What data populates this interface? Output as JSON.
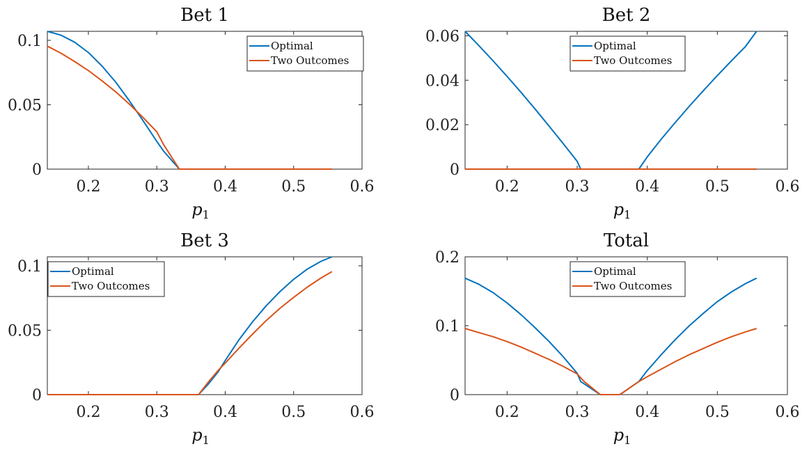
{
  "chart_data": [
    {
      "type": "line",
      "title": "Bet 1",
      "xlabel": "p",
      "xlabel_sub": "1",
      "xlim": [
        0.14,
        0.6
      ],
      "ylim": [
        0,
        0.107
      ],
      "xticks": [
        0.2,
        0.3,
        0.4,
        0.5,
        0.6
      ],
      "xtick_labels": [
        "0.2",
        "0.3",
        "0.4",
        "0.5",
        "0.6"
      ],
      "yticks": [
        0,
        0.05,
        0.1
      ],
      "ytick_labels": [
        "0",
        "0.05",
        "0.1"
      ],
      "legend_position": "top-right",
      "series": [
        {
          "name": "Optimal",
          "color": "#0072BD",
          "x": [
            0.14,
            0.16,
            0.18,
            0.2,
            0.22,
            0.24,
            0.26,
            0.28,
            0.3,
            0.31,
            0.333,
            0.35,
            0.4,
            0.45,
            0.5,
            0.556
          ],
          "y": [
            0.107,
            0.104,
            0.0985,
            0.0905,
            0.08,
            0.0675,
            0.053,
            0.0375,
            0.0215,
            0.014,
            0.0,
            0.0,
            0.0,
            0.0,
            0.0,
            0.0
          ]
        },
        {
          "name": "Two Outcomes",
          "color": "#D95319",
          "x": [
            0.14,
            0.16,
            0.18,
            0.2,
            0.22,
            0.24,
            0.26,
            0.28,
            0.3,
            0.31,
            0.333,
            0.35,
            0.4,
            0.45,
            0.5,
            0.556
          ],
          "y": [
            0.0955,
            0.09,
            0.0835,
            0.0765,
            0.0685,
            0.06,
            0.0505,
            0.04,
            0.029,
            0.019,
            0.0,
            0.0,
            0.0,
            0.0,
            0.0,
            0.0
          ]
        }
      ]
    },
    {
      "type": "line",
      "title": "Bet 2",
      "xlabel": "p",
      "xlabel_sub": "1",
      "xlim": [
        0.14,
        0.6
      ],
      "ylim": [
        0,
        0.062
      ],
      "xticks": [
        0.2,
        0.3,
        0.4,
        0.5,
        0.6
      ],
      "xtick_labels": [
        "0.2",
        "0.3",
        "0.4",
        "0.5",
        "0.6"
      ],
      "yticks": [
        0,
        0.02,
        0.04,
        0.06
      ],
      "ytick_labels": [
        "0",
        "0.02",
        "0.04",
        "0.06"
      ],
      "legend_position": "top-center",
      "series": [
        {
          "name": "Optimal",
          "color": "#0072BD",
          "x": [
            0.14,
            0.16,
            0.18,
            0.2,
            0.22,
            0.24,
            0.26,
            0.28,
            0.3,
            0.305,
            0.33,
            0.36,
            0.388,
            0.4,
            0.42,
            0.44,
            0.46,
            0.48,
            0.5,
            0.52,
            0.54,
            0.556
          ],
          "y": [
            0.062,
            0.0555,
            0.0487,
            0.0417,
            0.0345,
            0.027,
            0.0193,
            0.0115,
            0.0035,
            0.0,
            0.0,
            0.0,
            0.0,
            0.0055,
            0.0135,
            0.021,
            0.0283,
            0.0353,
            0.0421,
            0.0487,
            0.0551,
            0.062
          ]
        },
        {
          "name": "Two Outcomes",
          "color": "#D95319",
          "x": [
            0.14,
            0.3,
            0.4,
            0.556
          ],
          "y": [
            0.0,
            0.0,
            0.0,
            0.0
          ]
        }
      ]
    },
    {
      "type": "line",
      "title": "Bet 3",
      "xlabel": "p",
      "xlabel_sub": "1",
      "xlim": [
        0.14,
        0.6
      ],
      "ylim": [
        0,
        0.107
      ],
      "xticks": [
        0.2,
        0.3,
        0.4,
        0.5,
        0.6
      ],
      "xtick_labels": [
        "0.2",
        "0.3",
        "0.4",
        "0.5",
        "0.6"
      ],
      "yticks": [
        0,
        0.05,
        0.1
      ],
      "ytick_labels": [
        "0",
        "0.05",
        "0.1"
      ],
      "legend_position": "top-left",
      "series": [
        {
          "name": "Optimal",
          "color": "#0072BD",
          "x": [
            0.14,
            0.2,
            0.3,
            0.361,
            0.375,
            0.39,
            0.4,
            0.42,
            0.44,
            0.46,
            0.48,
            0.5,
            0.52,
            0.54,
            0.556
          ],
          "y": [
            0.0,
            0.0,
            0.0,
            0.0,
            0.008,
            0.018,
            0.0265,
            0.0425,
            0.0565,
            0.069,
            0.08,
            0.0895,
            0.0975,
            0.1035,
            0.107
          ]
        },
        {
          "name": "Two Outcomes",
          "color": "#D95319",
          "x": [
            0.14,
            0.2,
            0.3,
            0.361,
            0.375,
            0.39,
            0.4,
            0.42,
            0.44,
            0.46,
            0.48,
            0.5,
            0.52,
            0.54,
            0.556
          ],
          "y": [
            0.0,
            0.0,
            0.0,
            0.0,
            0.0095,
            0.019,
            0.0245,
            0.036,
            0.047,
            0.0575,
            0.067,
            0.0755,
            0.0835,
            0.0905,
            0.0955
          ]
        }
      ]
    },
    {
      "type": "line",
      "title": "Total",
      "xlabel": "p",
      "xlabel_sub": "1",
      "xlim": [
        0.14,
        0.6
      ],
      "ylim": [
        0,
        0.2
      ],
      "xticks": [
        0.2,
        0.3,
        0.4,
        0.5,
        0.6
      ],
      "xtick_labels": [
        "0.2",
        "0.3",
        "0.4",
        "0.5",
        "0.6"
      ],
      "yticks": [
        0,
        0.1,
        0.2
      ],
      "ytick_labels": [
        "0",
        "0.1",
        "0.2"
      ],
      "legend_position": "top-center",
      "series": [
        {
          "name": "Optimal",
          "color": "#0072BD",
          "x": [
            0.14,
            0.16,
            0.18,
            0.2,
            0.22,
            0.24,
            0.26,
            0.28,
            0.3,
            0.305,
            0.333,
            0.361,
            0.388,
            0.4,
            0.42,
            0.44,
            0.46,
            0.48,
            0.5,
            0.52,
            0.54,
            0.556
          ],
          "y": [
            0.169,
            0.16,
            0.148,
            0.133,
            0.116,
            0.097,
            0.077,
            0.055,
            0.031,
            0.019,
            0.0,
            0.0,
            0.019,
            0.035,
            0.058,
            0.08,
            0.1,
            0.118,
            0.135,
            0.149,
            0.161,
            0.169
          ]
        },
        {
          "name": "Two Outcomes",
          "color": "#D95319",
          "x": [
            0.14,
            0.16,
            0.18,
            0.2,
            0.22,
            0.24,
            0.26,
            0.28,
            0.3,
            0.31,
            0.333,
            0.361,
            0.388,
            0.4,
            0.42,
            0.44,
            0.46,
            0.48,
            0.5,
            0.52,
            0.54,
            0.556
          ],
          "y": [
            0.096,
            0.09,
            0.084,
            0.077,
            0.069,
            0.06,
            0.051,
            0.041,
            0.03,
            0.019,
            0.0,
            0.0,
            0.019,
            0.026,
            0.037,
            0.048,
            0.058,
            0.067,
            0.076,
            0.084,
            0.091,
            0.096
          ]
        }
      ]
    }
  ]
}
